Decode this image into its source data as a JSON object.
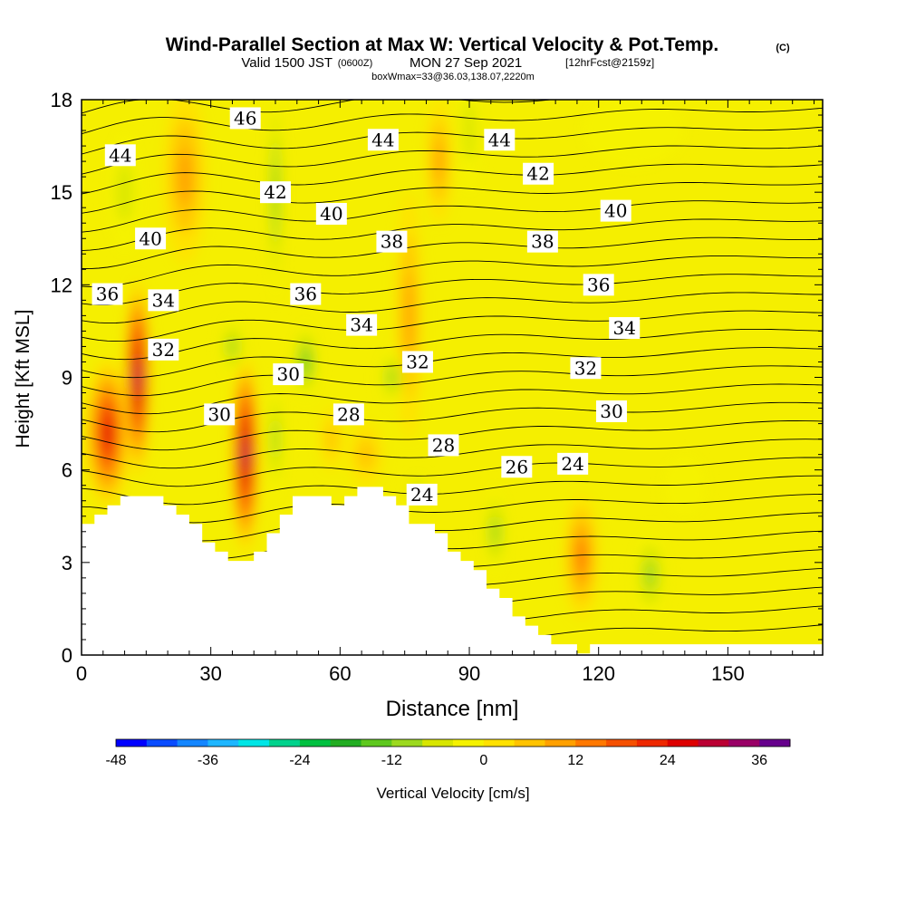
{
  "header": {
    "title": "Wind-Parallel Section at Max W: Vertical Velocity & Pot.Temp.",
    "copyright": "(C)",
    "valid_prefix": "Valid 1500 JST",
    "valid_utc": "(0600Z)",
    "valid_date": "MON 27 Sep 2021",
    "forecast": "[12hrFcst@2159z]",
    "boxinfo": "boxWmax=33@36.03,138.07,2220m"
  },
  "chart_data": {
    "type": "heatmap",
    "title": "Wind-Parallel Section at Max W: Vertical Velocity & Pot.Temp.",
    "xlabel": "Distance [nm]",
    "ylabel": "Height [Kft MSL]",
    "xlim": [
      0,
      172
    ],
    "ylim": [
      0,
      18
    ],
    "x_ticks": [
      0,
      30,
      60,
      90,
      120,
      150
    ],
    "y_ticks": [
      0,
      3,
      6,
      9,
      12,
      15,
      18
    ],
    "colorbar": {
      "label": "Vertical Velocity [cm/s]",
      "min": -48,
      "max": 40,
      "step": 4,
      "tick_labels": [
        "-48",
        "-36",
        "-24",
        "-12",
        "0",
        "12",
        "24",
        "36"
      ],
      "tick_values": [
        -48,
        -36,
        -24,
        -12,
        0,
        12,
        24,
        36
      ],
      "colors": [
        "#0000ff",
        "#0a4cff",
        "#1486ff",
        "#1eb6ff",
        "#00e6e6",
        "#00d28c",
        "#00c040",
        "#22ad22",
        "#5ec81e",
        "#9cd91e",
        "#d8e600",
        "#f5f200",
        "#ffe100",
        "#ffc300",
        "#ffa000",
        "#ff7800",
        "#f55000",
        "#ee2800",
        "#dd0000",
        "#bb0033",
        "#990066",
        "#66008c"
      ]
    },
    "vertical_velocity_cells": [
      {
        "x": 6,
        "y": 7.2,
        "rx": 5,
        "ry": 2.4,
        "w": 26
      },
      {
        "x": 13,
        "y": 9.0,
        "rx": 3,
        "ry": 3.2,
        "w": 33
      },
      {
        "x": 38,
        "y": 6.5,
        "rx": 3.2,
        "ry": 3.2,
        "w": 34
      },
      {
        "x": 24,
        "y": 15.5,
        "rx": 5,
        "ry": 2.8,
        "w": 12
      },
      {
        "x": 76,
        "y": 11.0,
        "rx": 3,
        "ry": 4,
        "w": 10
      },
      {
        "x": 83,
        "y": 16.0,
        "rx": 3,
        "ry": 2,
        "w": 10
      },
      {
        "x": 116,
        "y": 3.2,
        "rx": 4,
        "ry": 2,
        "w": 14
      },
      {
        "x": 66,
        "y": 6.5,
        "rx": 4,
        "ry": 1,
        "w": 8
      },
      {
        "x": 58,
        "y": 7.0,
        "rx": 2.5,
        "ry": 1,
        "w": 8
      },
      {
        "x": 45,
        "y": 15,
        "rx": 1.5,
        "ry": 3.5,
        "w": -13
      },
      {
        "x": 45,
        "y": 7,
        "rx": 2,
        "ry": 2,
        "w": -12
      },
      {
        "x": 52,
        "y": 9.5,
        "rx": 3,
        "ry": 1.3,
        "w": -13
      },
      {
        "x": 72,
        "y": 9.0,
        "rx": 3,
        "ry": 1,
        "w": -12
      },
      {
        "x": 35,
        "y": 10.0,
        "rx": 3,
        "ry": 1,
        "w": -10
      },
      {
        "x": 10,
        "y": 15,
        "rx": 4,
        "ry": 2,
        "w": -7
      },
      {
        "x": 90,
        "y": 17,
        "rx": 3,
        "ry": 2,
        "w": -8
      },
      {
        "x": 96,
        "y": 4.0,
        "rx": 3,
        "ry": 1.5,
        "w": -10
      },
      {
        "x": 132,
        "y": 2.6,
        "rx": 4,
        "ry": 1.5,
        "w": -12
      },
      {
        "x": 78,
        "y": 5.3,
        "rx": 2,
        "ry": 0.6,
        "w": -12
      },
      {
        "x": 128,
        "y": 17,
        "rx": 12,
        "ry": 1.2,
        "w": -4
      },
      {
        "x": 140,
        "y": 5.5,
        "rx": 5,
        "ry": 1,
        "w": -4
      }
    ],
    "isentrope_labels": [
      {
        "x": 38,
        "y": 17.4,
        "text": "46"
      },
      {
        "x": 70,
        "y": 16.7,
        "text": "44"
      },
      {
        "x": 97,
        "y": 16.7,
        "text": "44"
      },
      {
        "x": 9,
        "y": 16.2,
        "text": "44"
      },
      {
        "x": 106,
        "y": 15.6,
        "text": "42"
      },
      {
        "x": 45,
        "y": 15.0,
        "text": "42"
      },
      {
        "x": 58,
        "y": 14.3,
        "text": "40"
      },
      {
        "x": 124,
        "y": 14.4,
        "text": "40"
      },
      {
        "x": 16,
        "y": 13.5,
        "text": "40"
      },
      {
        "x": 72,
        "y": 13.4,
        "text": "38"
      },
      {
        "x": 107,
        "y": 13.4,
        "text": "38"
      },
      {
        "x": 120,
        "y": 12.0,
        "text": "36"
      },
      {
        "x": 52,
        "y": 11.7,
        "text": "36"
      },
      {
        "x": 6,
        "y": 11.7,
        "text": "36"
      },
      {
        "x": 19,
        "y": 11.5,
        "text": "34"
      },
      {
        "x": 65,
        "y": 10.7,
        "text": "34"
      },
      {
        "x": 126,
        "y": 10.6,
        "text": "34"
      },
      {
        "x": 19,
        "y": 9.9,
        "text": "32"
      },
      {
        "x": 78,
        "y": 9.5,
        "text": "32"
      },
      {
        "x": 117,
        "y": 9.3,
        "text": "32"
      },
      {
        "x": 48,
        "y": 9.1,
        "text": "30"
      },
      {
        "x": 32,
        "y": 7.8,
        "text": "30"
      },
      {
        "x": 123,
        "y": 7.9,
        "text": "30"
      },
      {
        "x": 62,
        "y": 7.8,
        "text": "28"
      },
      {
        "x": 84,
        "y": 6.8,
        "text": "28"
      },
      {
        "x": 101,
        "y": 6.1,
        "text": "26"
      },
      {
        "x": 114,
        "y": 6.2,
        "text": "24"
      },
      {
        "x": 79,
        "y": 5.2,
        "text": "24"
      }
    ],
    "terrain_profile": [
      [
        0,
        4.25
      ],
      [
        3,
        4.25
      ],
      [
        3,
        4.55
      ],
      [
        6,
        4.55
      ],
      [
        6,
        4.85
      ],
      [
        9,
        4.85
      ],
      [
        9,
        5.15
      ],
      [
        19,
        5.15
      ],
      [
        19,
        4.85
      ],
      [
        22,
        4.85
      ],
      [
        22,
        4.55
      ],
      [
        25,
        4.55
      ],
      [
        25,
        4.25
      ],
      [
        28,
        4.25
      ],
      [
        28,
        3.65
      ],
      [
        31,
        3.65
      ],
      [
        31,
        3.35
      ],
      [
        34,
        3.35
      ],
      [
        34,
        3.05
      ],
      [
        40,
        3.05
      ],
      [
        40,
        3.35
      ],
      [
        43,
        3.35
      ],
      [
        43,
        3.95
      ],
      [
        46,
        3.95
      ],
      [
        46,
        4.55
      ],
      [
        49,
        4.55
      ],
      [
        49,
        5.15
      ],
      [
        58,
        5.15
      ],
      [
        58,
        4.85
      ],
      [
        61,
        4.85
      ],
      [
        61,
        5.15
      ],
      [
        64,
        5.15
      ],
      [
        64,
        5.45
      ],
      [
        70,
        5.45
      ],
      [
        70,
        5.15
      ],
      [
        73,
        5.15
      ],
      [
        73,
        4.85
      ],
      [
        76,
        4.85
      ],
      [
        76,
        4.25
      ],
      [
        82,
        4.25
      ],
      [
        82,
        3.95
      ],
      [
        85,
        3.95
      ],
      [
        85,
        3.35
      ],
      [
        88,
        3.35
      ],
      [
        88,
        3.05
      ],
      [
        91,
        3.05
      ],
      [
        91,
        2.75
      ],
      [
        94,
        2.75
      ],
      [
        94,
        2.15
      ],
      [
        97,
        2.15
      ],
      [
        97,
        1.85
      ],
      [
        100,
        1.85
      ],
      [
        100,
        1.25
      ],
      [
        103,
        1.25
      ],
      [
        103,
        0.95
      ],
      [
        106,
        0.95
      ],
      [
        106,
        0.65
      ],
      [
        109,
        0.65
      ],
      [
        109,
        0.35
      ],
      [
        115,
        0.35
      ],
      [
        115,
        0.05
      ],
      [
        118,
        0.05
      ],
      [
        118,
        0.35
      ],
      [
        172,
        0.35
      ]
    ]
  }
}
